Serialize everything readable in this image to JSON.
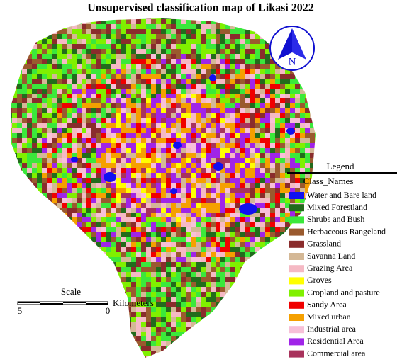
{
  "title": "Unsupervised classification map of Likasi 2022",
  "north_arrow": {
    "label": "N"
  },
  "scale": {
    "label": "Scale",
    "ticks": [
      5,
      0
    ],
    "unit": "Kilometers"
  },
  "legend": {
    "title": "Legend",
    "subtitle": "Class_Names",
    "items": [
      {
        "name": "Water and Bare land",
        "color": "#1010f0"
      },
      {
        "name": "Mixed Forestland",
        "color": "#226b1c"
      },
      {
        "name": "Shrubs and Bush",
        "color": "#3be83b"
      },
      {
        "name": "Herbaceous Rangeland",
        "color": "#9a5a2e"
      },
      {
        "name": "Grassland",
        "color": "#8a2c2c"
      },
      {
        "name": "Savanna Land",
        "color": "#d4b896"
      },
      {
        "name": "Grazing Area",
        "color": "#f5b9c4"
      },
      {
        "name": "Groves",
        "color": "#ffff00"
      },
      {
        "name": "Cropland and pasture",
        "color": "#80f000"
      },
      {
        "name": "Sandy Area",
        "color": "#f00000"
      },
      {
        "name": "Mixed urban",
        "color": "#f5a000"
      },
      {
        "name": "Industrial area",
        "color": "#f7c0d8"
      },
      {
        "name": "Residential Area",
        "color": "#a024e8"
      },
      {
        "name": "Commercial area",
        "color": "#a8325c"
      }
    ]
  }
}
